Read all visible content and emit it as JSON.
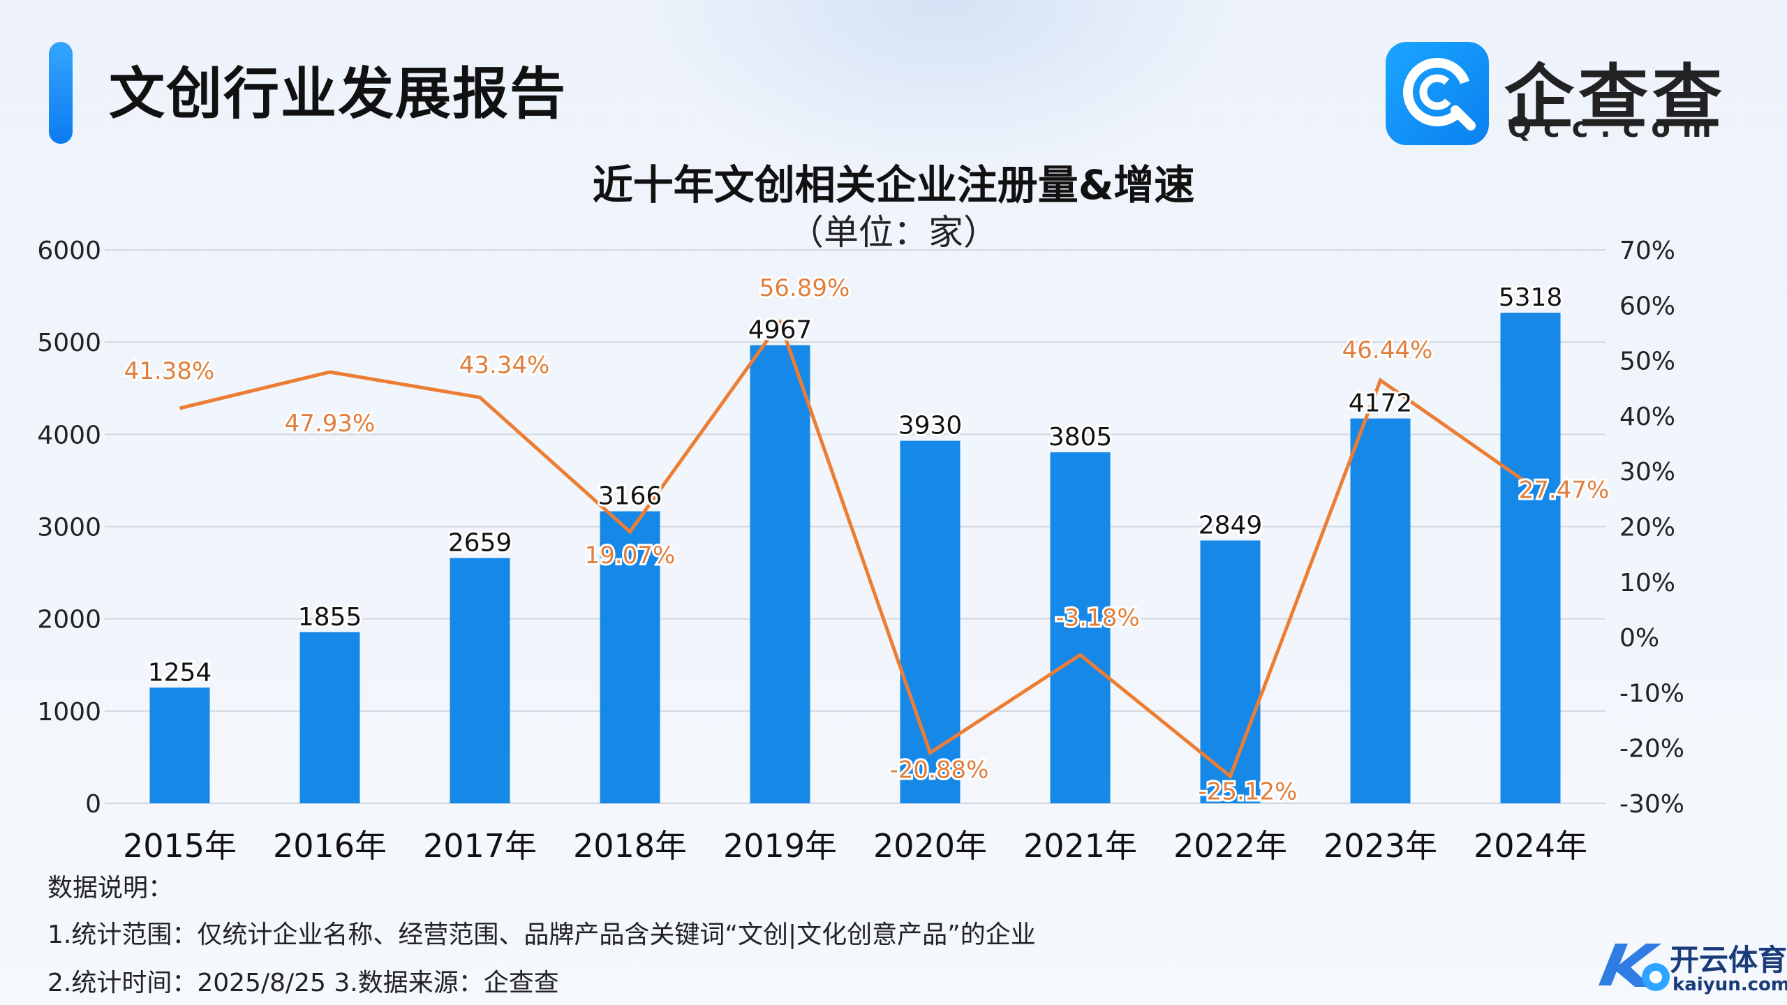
{
  "header": {
    "title": "文创行业发展报告",
    "logo_name": "企查查",
    "logo_domain": "Qcc.com"
  },
  "chart_data": {
    "type": "bar",
    "title": "近十年文创相关企业注册量&增速",
    "subtitle": "（单位：家）",
    "categories": [
      "2015年",
      "2016年",
      "2017年",
      "2018年",
      "2019年",
      "2020年",
      "2021年",
      "2022年",
      "2023年",
      "2024年"
    ],
    "series": [
      {
        "type": "bar",
        "axis": "left",
        "color": "#1688e8",
        "values": [
          1254,
          1855,
          2659,
          3166,
          4967,
          3930,
          3805,
          2849,
          4172,
          5318
        ],
        "labels": [
          "1254",
          "1855",
          "2659",
          "3166",
          "4967",
          "3930",
          "3805",
          "2849",
          "4172",
          "5318"
        ]
      },
      {
        "type": "line",
        "axis": "right",
        "color": "#ec7d33",
        "values": [
          41.38,
          47.93,
          43.34,
          19.07,
          56.89,
          -20.88,
          -3.18,
          -25.12,
          46.44,
          27.47
        ],
        "labels": [
          "41.38%",
          "47.93%",
          "43.34%",
          "19.07%",
          "56.89%",
          "-20.88%",
          "-3.18%",
          "-25.12%",
          "46.44%",
          "27.47%"
        ]
      }
    ],
    "ylim_left": [
      0,
      6000
    ],
    "yticks_left": [
      "0",
      "1000",
      "2000",
      "3000",
      "4000",
      "5000",
      "6000"
    ],
    "ylim_right": [
      -30,
      70
    ],
    "yticks_right": [
      "-30%",
      "-20%",
      "-10%",
      "0%",
      "10%",
      "20%",
      "30%",
      "40%",
      "50%",
      "60%",
      "70%"
    ],
    "grid": true,
    "legend": "none"
  },
  "notes": {
    "heading": "数据说明：",
    "line1": "1.统计范围：仅统计企业名称、经营范围、品牌产品含关键词“文创|文化创意产品”的企业",
    "line2": "2.统计时间：2025/8/25  3.数据来源：企查查"
  },
  "watermark": {
    "name": "开云体育",
    "domain": "kaiyun.com"
  }
}
